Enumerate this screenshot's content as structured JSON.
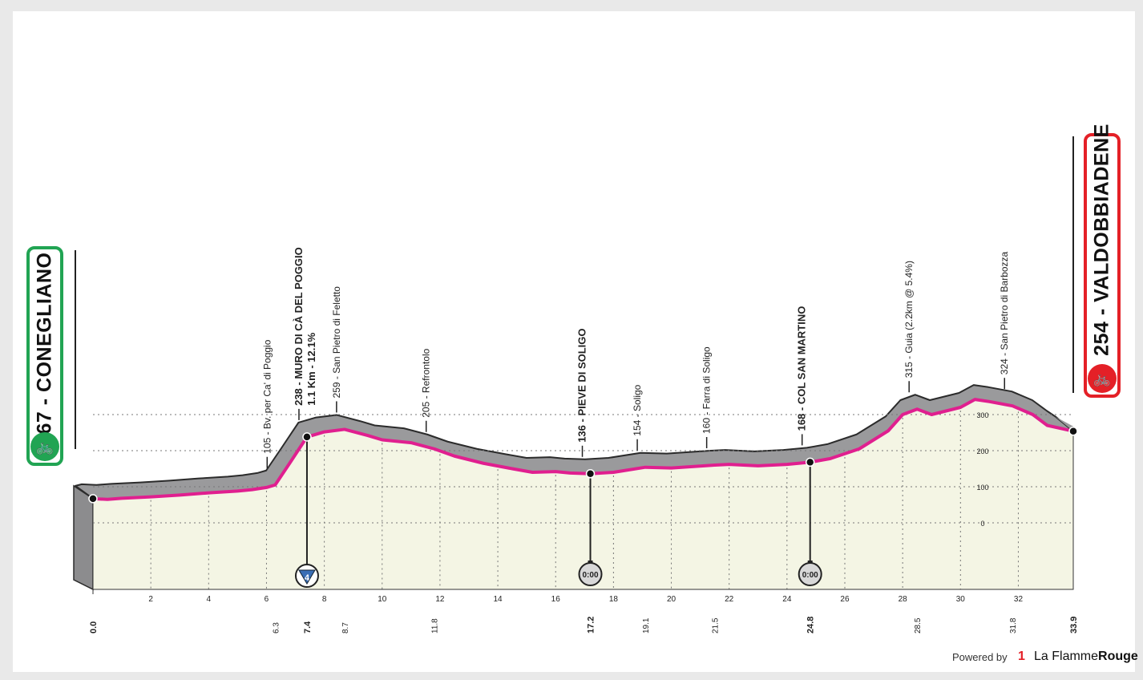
{
  "chart_data": {
    "type": "area",
    "title": "",
    "xlabel": "",
    "ylabel": "",
    "xlim": [
      0,
      33.9
    ],
    "ylim": [
      -150,
      450
    ],
    "grid": "dotted",
    "x_ticks": [
      "2",
      "4",
      "6",
      "8",
      "10",
      "12",
      "14",
      "16",
      "18",
      "20",
      "22",
      "24",
      "26",
      "28",
      "30",
      "32"
    ],
    "x_tick_values": [
      2,
      4,
      6,
      8,
      10,
      12,
      14,
      16,
      18,
      20,
      22,
      24,
      26,
      28,
      30,
      32
    ],
    "y_ticks": [
      "300",
      "200",
      "100",
      "0"
    ],
    "y_tick_values": [
      300,
      200,
      100,
      0
    ],
    "elevation": {
      "x": [
        0.0,
        0.5,
        1.0,
        2.0,
        3.0,
        4.0,
        5.0,
        5.5,
        6.0,
        6.3,
        6.8,
        7.4,
        8.0,
        8.7,
        9.5,
        10.0,
        11.0,
        11.8,
        12.5,
        13.5,
        14.5,
        15.2,
        16.0,
        16.5,
        17.2,
        18.0,
        19.1,
        20.0,
        21.5,
        22.0,
        23.0,
        24.0,
        24.8,
        25.5,
        26.5,
        27.5,
        28.0,
        28.5,
        29.0,
        30.0,
        30.5,
        31.0,
        31.8,
        32.5,
        33.0,
        33.9
      ],
      "y": [
        67,
        65,
        68,
        72,
        77,
        83,
        88,
        92,
        98,
        105,
        165,
        238,
        252,
        259,
        242,
        230,
        222,
        205,
        185,
        165,
        150,
        140,
        142,
        138,
        136,
        140,
        154,
        152,
        160,
        162,
        158,
        162,
        168,
        178,
        205,
        255,
        300,
        315,
        300,
        320,
        342,
        336,
        324,
        300,
        270,
        254
      ]
    },
    "points": [
      {
        "km": "0.0",
        "alt": 67,
        "name": "CONEGLIANO",
        "label": "67 - CONEGLIANO",
        "kind": "start"
      },
      {
        "km": "6.3",
        "alt": 105,
        "name": "Bv. per Ca' di Poggio",
        "label": "105 - Bv. per Ca' di Poggio",
        "kind": "minor"
      },
      {
        "km": "7.4",
        "alt": 238,
        "name": "MURO DI CÀ DEL POGGIO",
        "label": "238 - MURO DI CÀ DEL POGGIO",
        "sublabel": "1.1 Km - 12.1%",
        "kind": "kom",
        "kom_cat": "4"
      },
      {
        "km": "8.7",
        "alt": 259,
        "name": "San Pietro di Feletto",
        "label": "259 - San Pietro di Feletto",
        "kind": "minor"
      },
      {
        "km": "11.8",
        "alt": 205,
        "name": "Refrontolo",
        "label": "205 - Refrontolo",
        "kind": "minor"
      },
      {
        "km": "17.2",
        "alt": 136,
        "name": "PIEVE DI SOLIGO",
        "label": "136 - PIEVE DI SOLIGO",
        "kind": "time",
        "time_label": "0:00"
      },
      {
        "km": "19.1",
        "alt": 154,
        "name": "Soligo",
        "label": "154 - Soligo",
        "kind": "minor"
      },
      {
        "km": "21.5",
        "alt": 160,
        "name": "Farra di Soligo",
        "label": "160 - Farra di Soligo",
        "kind": "minor"
      },
      {
        "km": "24.8",
        "alt": 168,
        "name": "COL SAN MARTINO",
        "label": "168 - COL SAN MARTINO",
        "kind": "time",
        "time_label": "0:00"
      },
      {
        "km": "28.5",
        "alt": 315,
        "name": "Guia",
        "label": "315 - Guia (2.2km @ 5.4%)",
        "kind": "minor"
      },
      {
        "km": "31.8",
        "alt": 324,
        "name": "San Pietro di Barbozza",
        "label": "324 - San Pietro di Barbozza",
        "kind": "minor"
      },
      {
        "km": "33.9",
        "alt": 254,
        "name": "VALDOBBIADENE",
        "label": "254 - VALDOBBIADENE",
        "kind": "finish"
      }
    ],
    "colors": {
      "route_line": "#e01f8f",
      "terrain_fill": "#f4f5e4",
      "ridge_fill": "#9a9a9c",
      "ridge_dark": "#2b2b2b",
      "start": "#21a453",
      "finish": "#e42027",
      "kom": "#3a6eb5"
    }
  },
  "badges": {
    "start_label": "67 - CONEGLIANO",
    "finish_label": "254 - VALDOBBIADENE",
    "start_icon": "cyclist-icon",
    "finish_icon": "cyclist-icon"
  },
  "footer": {
    "powered_by": "Powered by",
    "brand_regular": "La Flamme",
    "brand_bold": "Rouge",
    "brand_icon": "1"
  }
}
